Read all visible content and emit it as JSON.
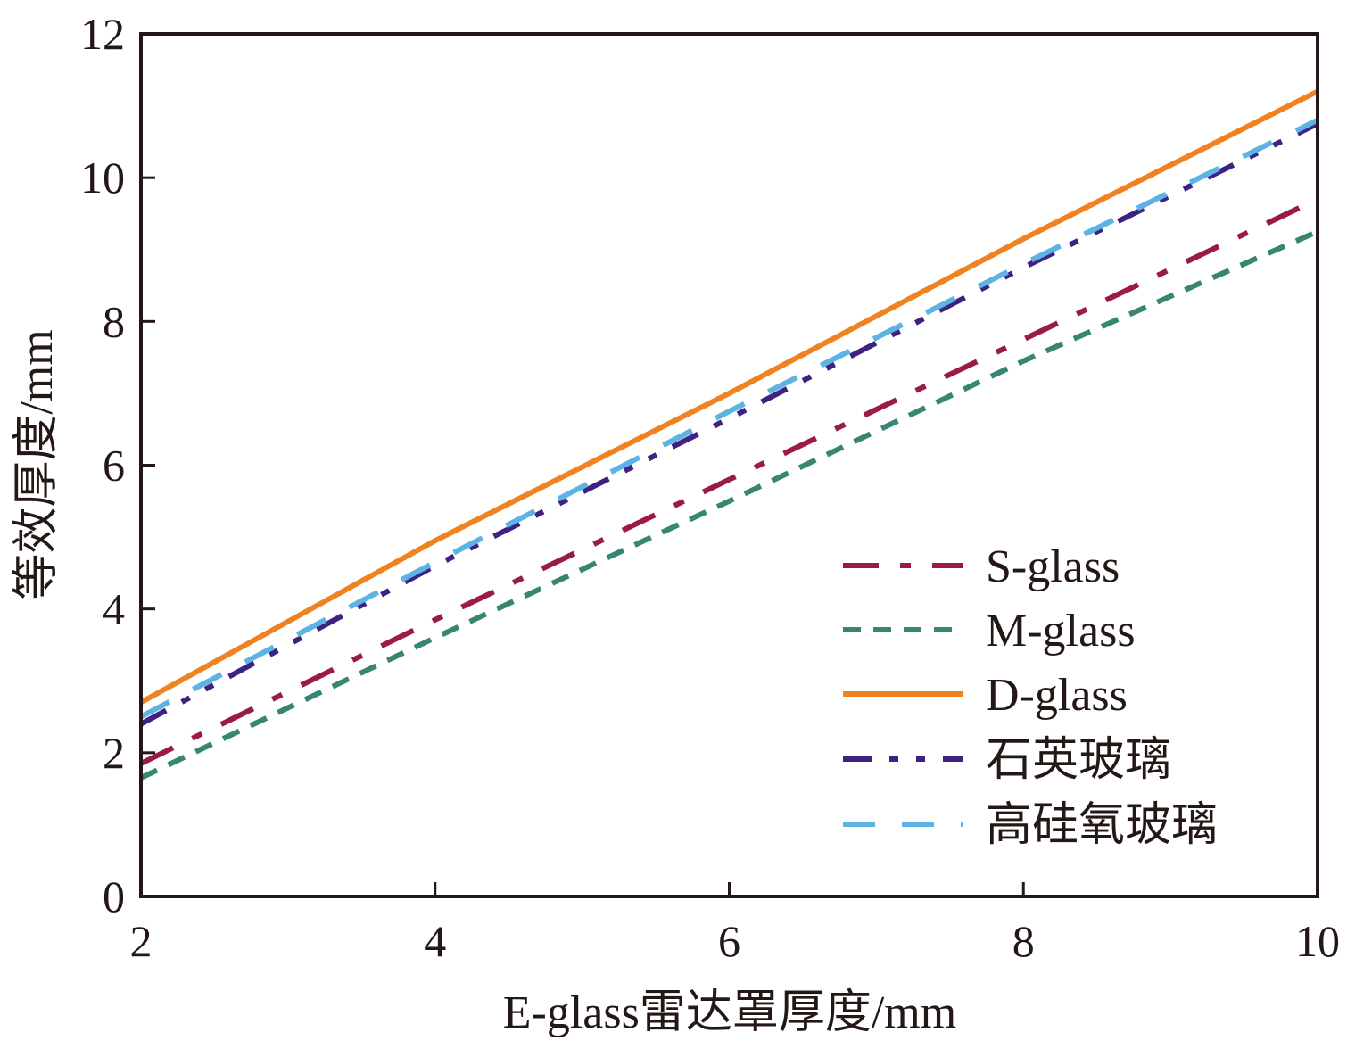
{
  "chart_data": {
    "type": "line",
    "title": "",
    "xlabel": "E-glass雷达罩厚度/mm",
    "ylabel": "等效厚度/mm",
    "xlim": [
      2,
      10
    ],
    "ylim": [
      0,
      12
    ],
    "xticks": [
      2,
      4,
      6,
      8,
      10
    ],
    "yticks": [
      0,
      2,
      4,
      6,
      8,
      10,
      12
    ],
    "grid": false,
    "legend_position": "lower-right",
    "x": [
      2,
      4,
      6,
      8,
      10
    ],
    "series": [
      {
        "name": "S-glass",
        "color": "#9b1b47",
        "dash": "dash-dot",
        "values": [
          1.85,
          3.85,
          5.8,
          7.75,
          9.7
        ]
      },
      {
        "name": "M-glass",
        "color": "#368673",
        "dash": "short-dash",
        "values": [
          1.65,
          3.6,
          5.5,
          7.45,
          9.25
        ]
      },
      {
        "name": "D-glass",
        "color": "#ef8221",
        "dash": "solid",
        "values": [
          2.7,
          4.95,
          7.0,
          9.15,
          11.2
        ]
      },
      {
        "name": "石英玻璃",
        "color": "#3f2182",
        "dash": "dash-dot-dot",
        "values": [
          2.4,
          4.6,
          6.65,
          8.75,
          10.75
        ]
      },
      {
        "name": "高硅氧玻璃",
        "color": "#5cb3e4",
        "dash": "long-dash",
        "values": [
          2.5,
          4.65,
          6.75,
          8.8,
          10.8
        ]
      }
    ]
  }
}
